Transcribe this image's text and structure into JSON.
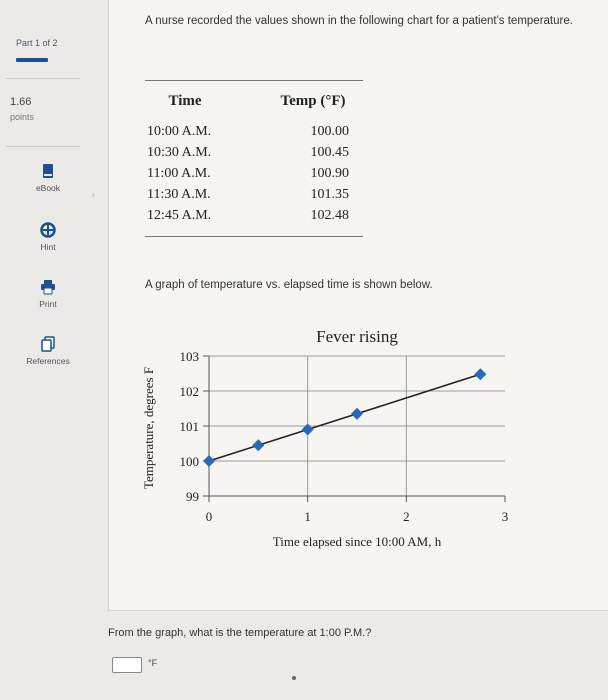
{
  "sidebar": {
    "part_label": "Part 1 of 2",
    "points_value": "1.66",
    "points_label": "points",
    "tools": [
      {
        "label": "eBook",
        "icon": "book-icon"
      },
      {
        "label": "Hint",
        "icon": "lifebuoy-icon"
      },
      {
        "label": "Print",
        "icon": "printer-icon"
      },
      {
        "label": "References",
        "icon": "references-icon"
      }
    ]
  },
  "question": {
    "text": "A nurse recorded the values shown in the following chart for a patient's temperature."
  },
  "table": {
    "headers": [
      "Time",
      "Temp (°F)"
    ],
    "rows": [
      [
        "10:00 A.M.",
        "100.00"
      ],
      [
        "10:30 A.M.",
        "100.45"
      ],
      [
        "11:00 A.M.",
        "100.90"
      ],
      [
        "11:30 A.M.",
        "101.35"
      ],
      [
        "12:45 A.M.",
        "102.48"
      ]
    ]
  },
  "graph_intro": "A graph of temperature vs. elapsed time is shown below.",
  "chart_data": {
    "type": "line",
    "title": "Fever rising",
    "xlabel": "Time elapsed since 10:00 AM, h",
    "ylabel": "Temperature, degrees F",
    "x_ticks": [
      "0",
      "1",
      "2",
      "3"
    ],
    "y_ticks": [
      "99",
      "100",
      "101",
      "102",
      "103"
    ],
    "xlim": [
      0,
      3
    ],
    "ylim": [
      99,
      103
    ],
    "grid": true,
    "series": [
      {
        "x": [
          0,
          0.5,
          1.0,
          1.5,
          2.75
        ],
        "y": [
          100.0,
          100.45,
          100.9,
          101.35,
          102.48
        ]
      }
    ],
    "colors": {
      "marker": "#2a69b8",
      "line": "#222222"
    }
  },
  "bottom": {
    "question": "From the graph, what is the temperature at 1:00 P.M.?",
    "answer_value": "",
    "unit": "°F"
  }
}
